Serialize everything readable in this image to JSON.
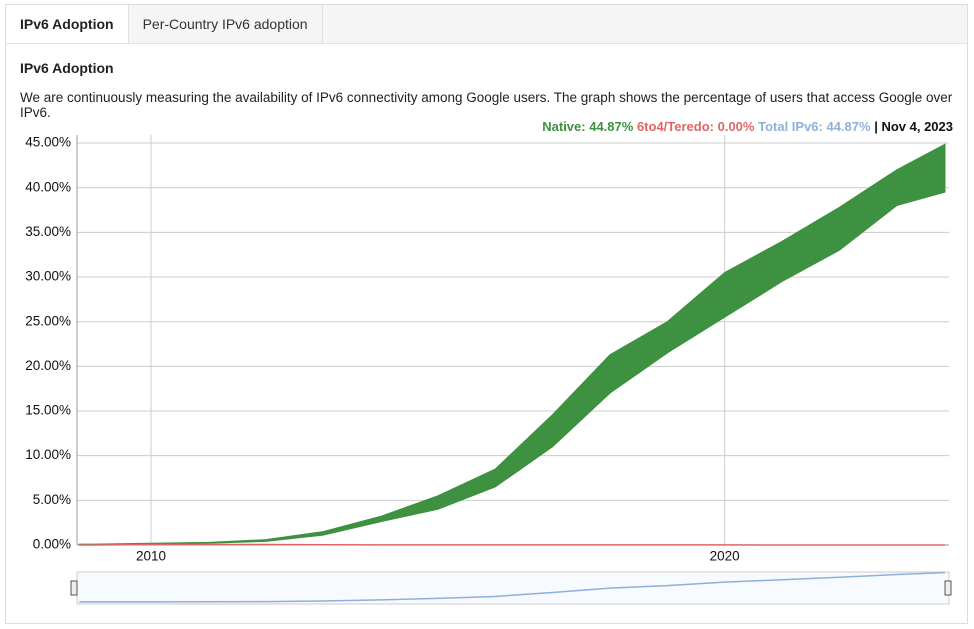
{
  "tabs": [
    "IPv6 Adoption",
    "Per-Country IPv6 adoption"
  ],
  "section_title": "IPv6 Adoption",
  "description": "We are continuously measuring the availability of IPv6 connectivity among Google users. The graph shows the percentage of users that access Google over IPv6.",
  "legend": {
    "native": "Native: 44.87%",
    "teredo": "6to4/Teredo: 0.00%",
    "total": "Total IPv6: 44.87%",
    "date": "| Nov 4, 2023"
  },
  "chart_data": {
    "type": "area",
    "x": [
      2008.75,
      2009,
      2010,
      2011,
      2012,
      2013,
      2014,
      2015,
      2016,
      2017,
      2018,
      2019,
      2020,
      2021,
      2022,
      2023,
      2023.84
    ],
    "series": [
      {
        "color": "#3d9140",
        "values": [
          0.1,
          0.1,
          0.2,
          0.3,
          0.6,
          1.5,
          3.2,
          5.5,
          8.5,
          14.6,
          21.3,
          25,
          30.5,
          34,
          37.8,
          42,
          44.87
        ],
        "values_low": [
          0.05,
          0.05,
          0.1,
          0.2,
          0.4,
          1.1,
          2.6,
          4,
          6.5,
          11,
          17,
          21.5,
          25.5,
          29.5,
          33,
          38,
          39.5
        ]
      },
      {
        "color": "#e06666",
        "values": [
          0,
          0,
          0.05,
          0.05,
          0.05,
          0.03,
          0.02,
          0.01,
          0.01,
          0.01,
          0.01,
          0.01,
          0.01,
          0,
          0,
          0,
          0
        ]
      }
    ],
    "navigator_color": "#8fb0d8",
    "xlim": [
      2008.71,
      2023.91
    ],
    "xticks": [
      2010,
      2020
    ],
    "ylim": [
      0,
      45.9
    ],
    "yticks": [
      {
        "value": 0,
        "label": "0.00%"
      },
      {
        "value": 5,
        "label": "5.00%"
      },
      {
        "value": 10,
        "label": "10.00%"
      },
      {
        "value": 15,
        "label": "15.00%"
      },
      {
        "value": 20,
        "label": "20.00%"
      },
      {
        "value": 25,
        "label": "25.00%"
      },
      {
        "value": 30,
        "label": "30.00%"
      },
      {
        "value": 35,
        "label": "35.00%"
      },
      {
        "value": 40,
        "label": "40.00%"
      },
      {
        "value": 45,
        "label": "45.00%"
      }
    ],
    "grid": true
  }
}
